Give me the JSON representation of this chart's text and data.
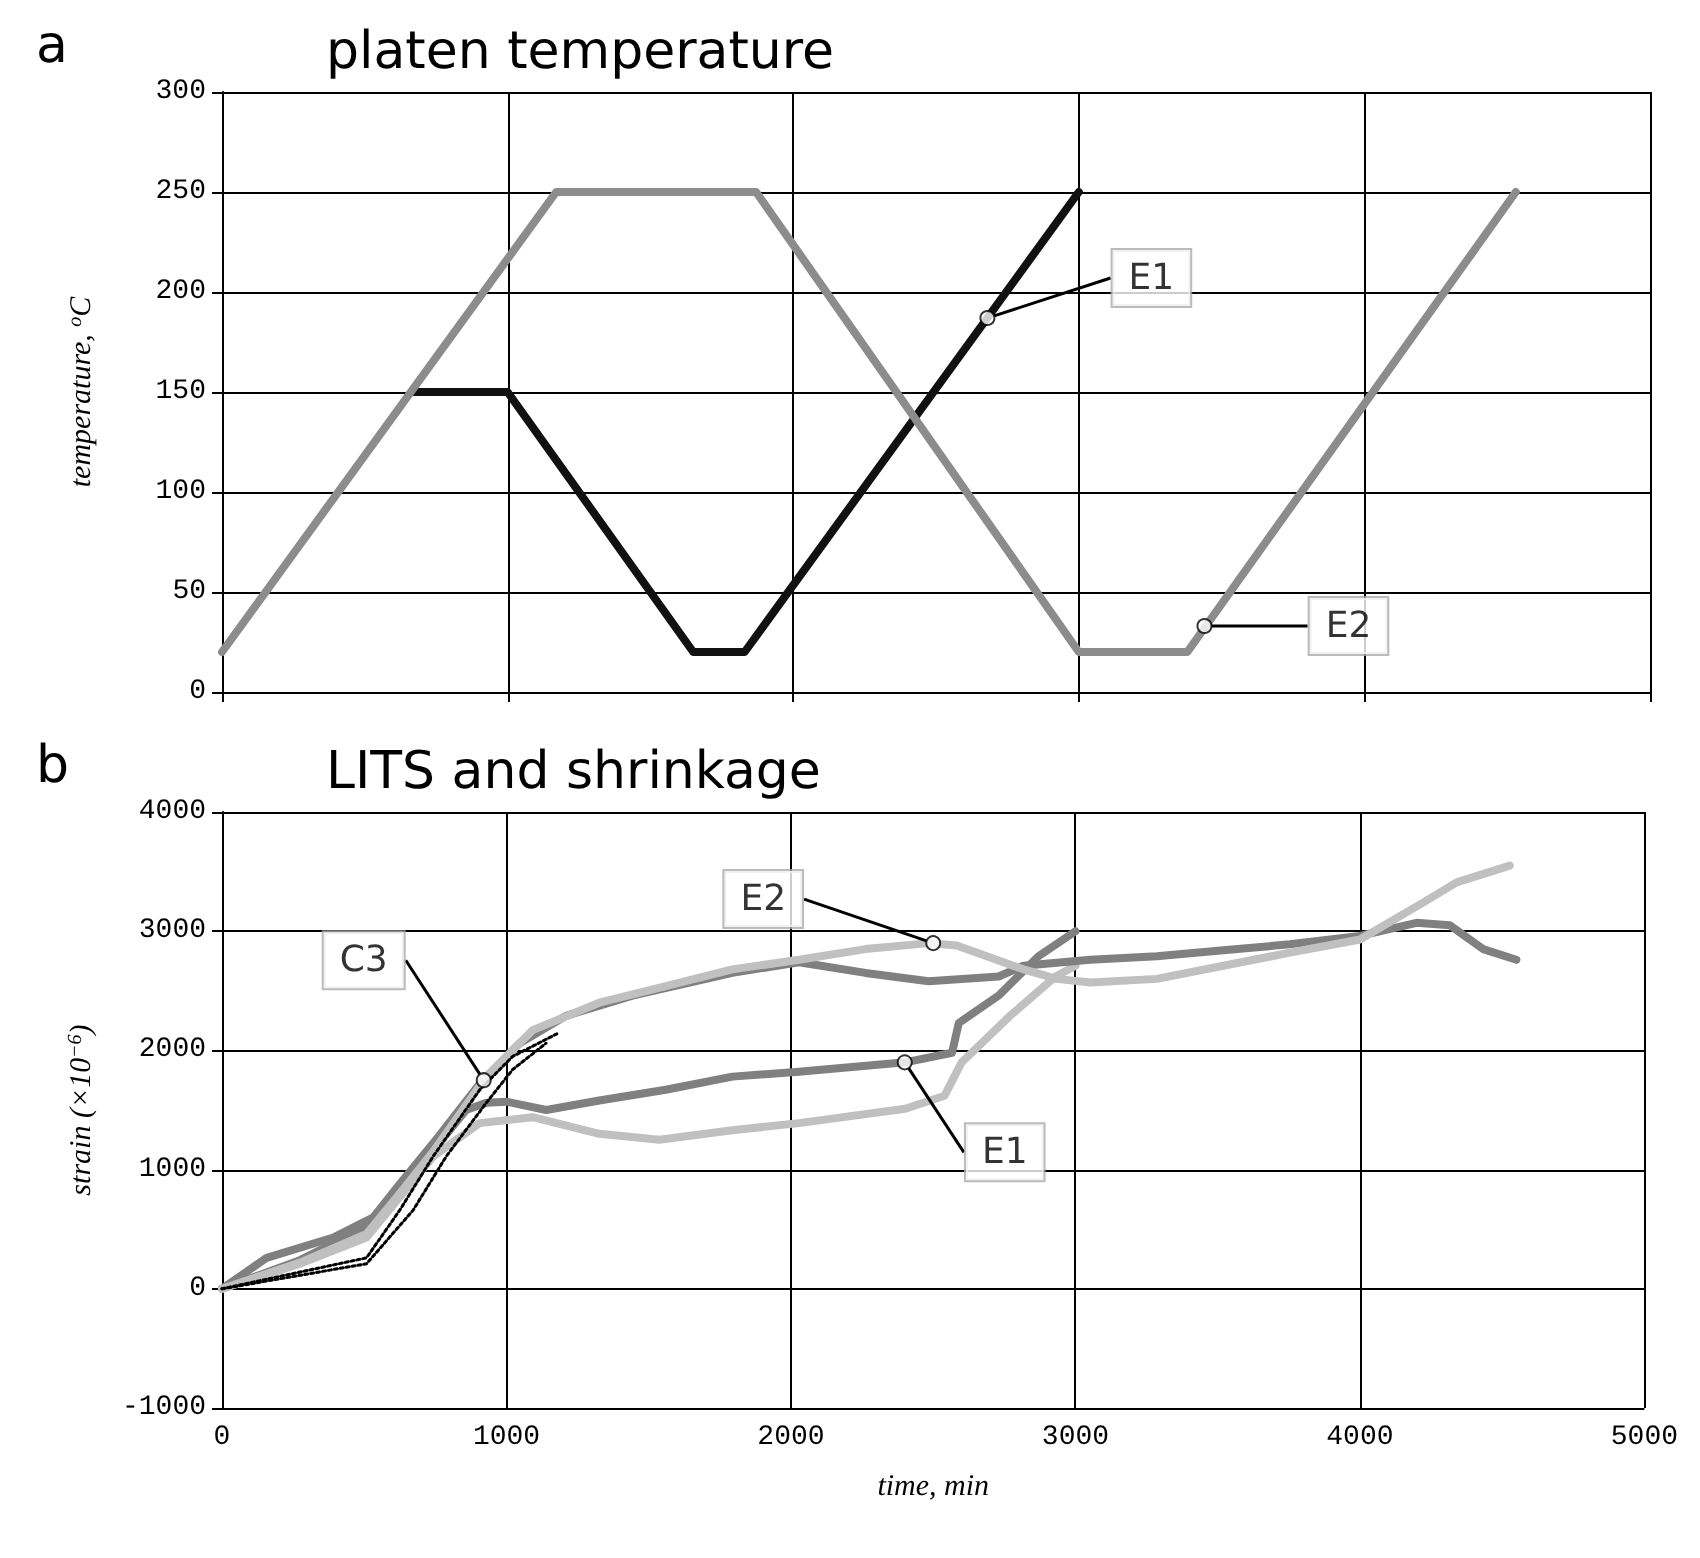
{
  "chart_data": [
    {
      "type": "line",
      "title": "platen temperature",
      "ylabel": "temperature, $^{o}$C",
      "xlim": [
        0,
        5000
      ],
      "xticks": [
        0,
        1000,
        2000,
        3000,
        4000,
        5000
      ],
      "ylim": [
        0,
        300
      ],
      "yticks": [
        0,
        50,
        100,
        150,
        200,
        250,
        300
      ],
      "grid": true,
      "tick_labels": "y",
      "marker": "none",
      "line_style": "solid",
      "annotations": [
        "a",
        {
          "text": "E1",
          "x": 2680,
          "y": 187
        },
        {
          "text": "E2",
          "x": 3440,
          "y": 33
        }
      ],
      "series": [
        {
          "color": "#111111",
          "x": [
            670,
            1000,
            1650,
            1830,
            3000
          ],
          "values": [
            150,
            150,
            20,
            20,
            250
          ]
        },
        {
          "color": "#8c8c8c",
          "x": [
            0,
            1170,
            1870,
            3000,
            3380,
            4530
          ],
          "values": [
            20,
            250,
            250,
            20,
            20,
            250
          ]
        }
      ]
    },
    {
      "type": "line",
      "title": "LITS and shrinkage",
      "xlabel": "time, min",
      "ylabel": "strain (×10$^{−6}$)",
      "xlim": [
        0,
        5000
      ],
      "xticks": [
        0,
        1000,
        2000,
        3000,
        4000,
        5000
      ],
      "ylim": [
        -1000,
        4000
      ],
      "yticks": [
        -1000,
        0,
        1000,
        2000,
        3000,
        4000
      ],
      "grid": true,
      "marker": "none",
      "annotations": [
        "b",
        {
          "text": "E2",
          "x": 2500,
          "y": 2900
        },
        {
          "text": "E1",
          "x": 2400,
          "y": 1900
        },
        {
          "text": "C3",
          "x": 920,
          "y": 1750
        }
      ],
      "series": [
        {
          "color": "#808080",
          "line_style": "solid",
          "x": [
            0,
            274,
            508,
            625,
            742,
            858,
            929,
            1000,
            1140,
            1326,
            1560,
            1794,
            2028,
            2402,
            2566,
            2590,
            2730,
            2870,
            3000
          ],
          "values": [
            0,
            240,
            520,
            830,
            1160,
            1500,
            1560,
            1570,
            1500,
            1580,
            1670,
            1780,
            1820,
            1900,
            1980,
            2230,
            2460,
            2790,
            3000
          ]
        },
        {
          "color": "#c0c0c0",
          "line_style": "solid",
          "x": [
            0,
            274,
            508,
            625,
            742,
            906,
            1092,
            1326,
            1537,
            1794,
            2028,
            2402,
            2540,
            2600,
            2770,
            2930,
            3000
          ],
          "values": [
            0,
            210,
            430,
            770,
            1110,
            1390,
            1440,
            1300,
            1250,
            1330,
            1390,
            1510,
            1620,
            1900,
            2290,
            2620,
            2710
          ]
        },
        {
          "color": "#808080",
          "line_style": "solid",
          "x": [
            0,
            157,
            391,
            532,
            625,
            742,
            906,
            1046,
            1209,
            1443,
            1794,
            2028,
            2262,
            2484,
            2730,
            2817,
            3052,
            3286,
            3520,
            3754,
            4000,
            4199,
            4316,
            4433,
            4550
          ],
          "values": [
            0,
            260,
            430,
            600,
            880,
            1220,
            1720,
            2060,
            2290,
            2460,
            2650,
            2740,
            2650,
            2580,
            2620,
            2710,
            2760,
            2790,
            2840,
            2890,
            2960,
            3070,
            3050,
            2850,
            2760
          ]
        },
        {
          "color": "#c0c0c0",
          "line_style": "solid",
          "x": [
            0,
            274,
            508,
            625,
            742,
            929,
            1092,
            1326,
            1560,
            1794,
            2028,
            2262,
            2484,
            2583,
            2817,
            2934,
            3052,
            3286,
            3520,
            3754,
            4000,
            4222,
            4340,
            4527
          ],
          "values": [
            0,
            220,
            460,
            800,
            1150,
            1780,
            2170,
            2400,
            2540,
            2680,
            2760,
            2850,
            2900,
            2880,
            2680,
            2600,
            2570,
            2600,
            2710,
            2820,
            2930,
            3240,
            3410,
            3550
          ]
        },
        {
          "color": "#000000",
          "line_style": "dotted",
          "x": [
            0,
            508,
            625,
            742,
            906,
            1022,
            1186
          ],
          "values": [
            0,
            260,
            660,
            1110,
            1670,
            1950,
            2150
          ]
        },
        {
          "color": "#000000",
          "line_style": "dotted",
          "x": [
            0,
            508,
            672,
            788,
            929,
            1022,
            1139
          ],
          "values": [
            0,
            210,
            660,
            1110,
            1560,
            1840,
            2060
          ]
        }
      ]
    }
  ]
}
